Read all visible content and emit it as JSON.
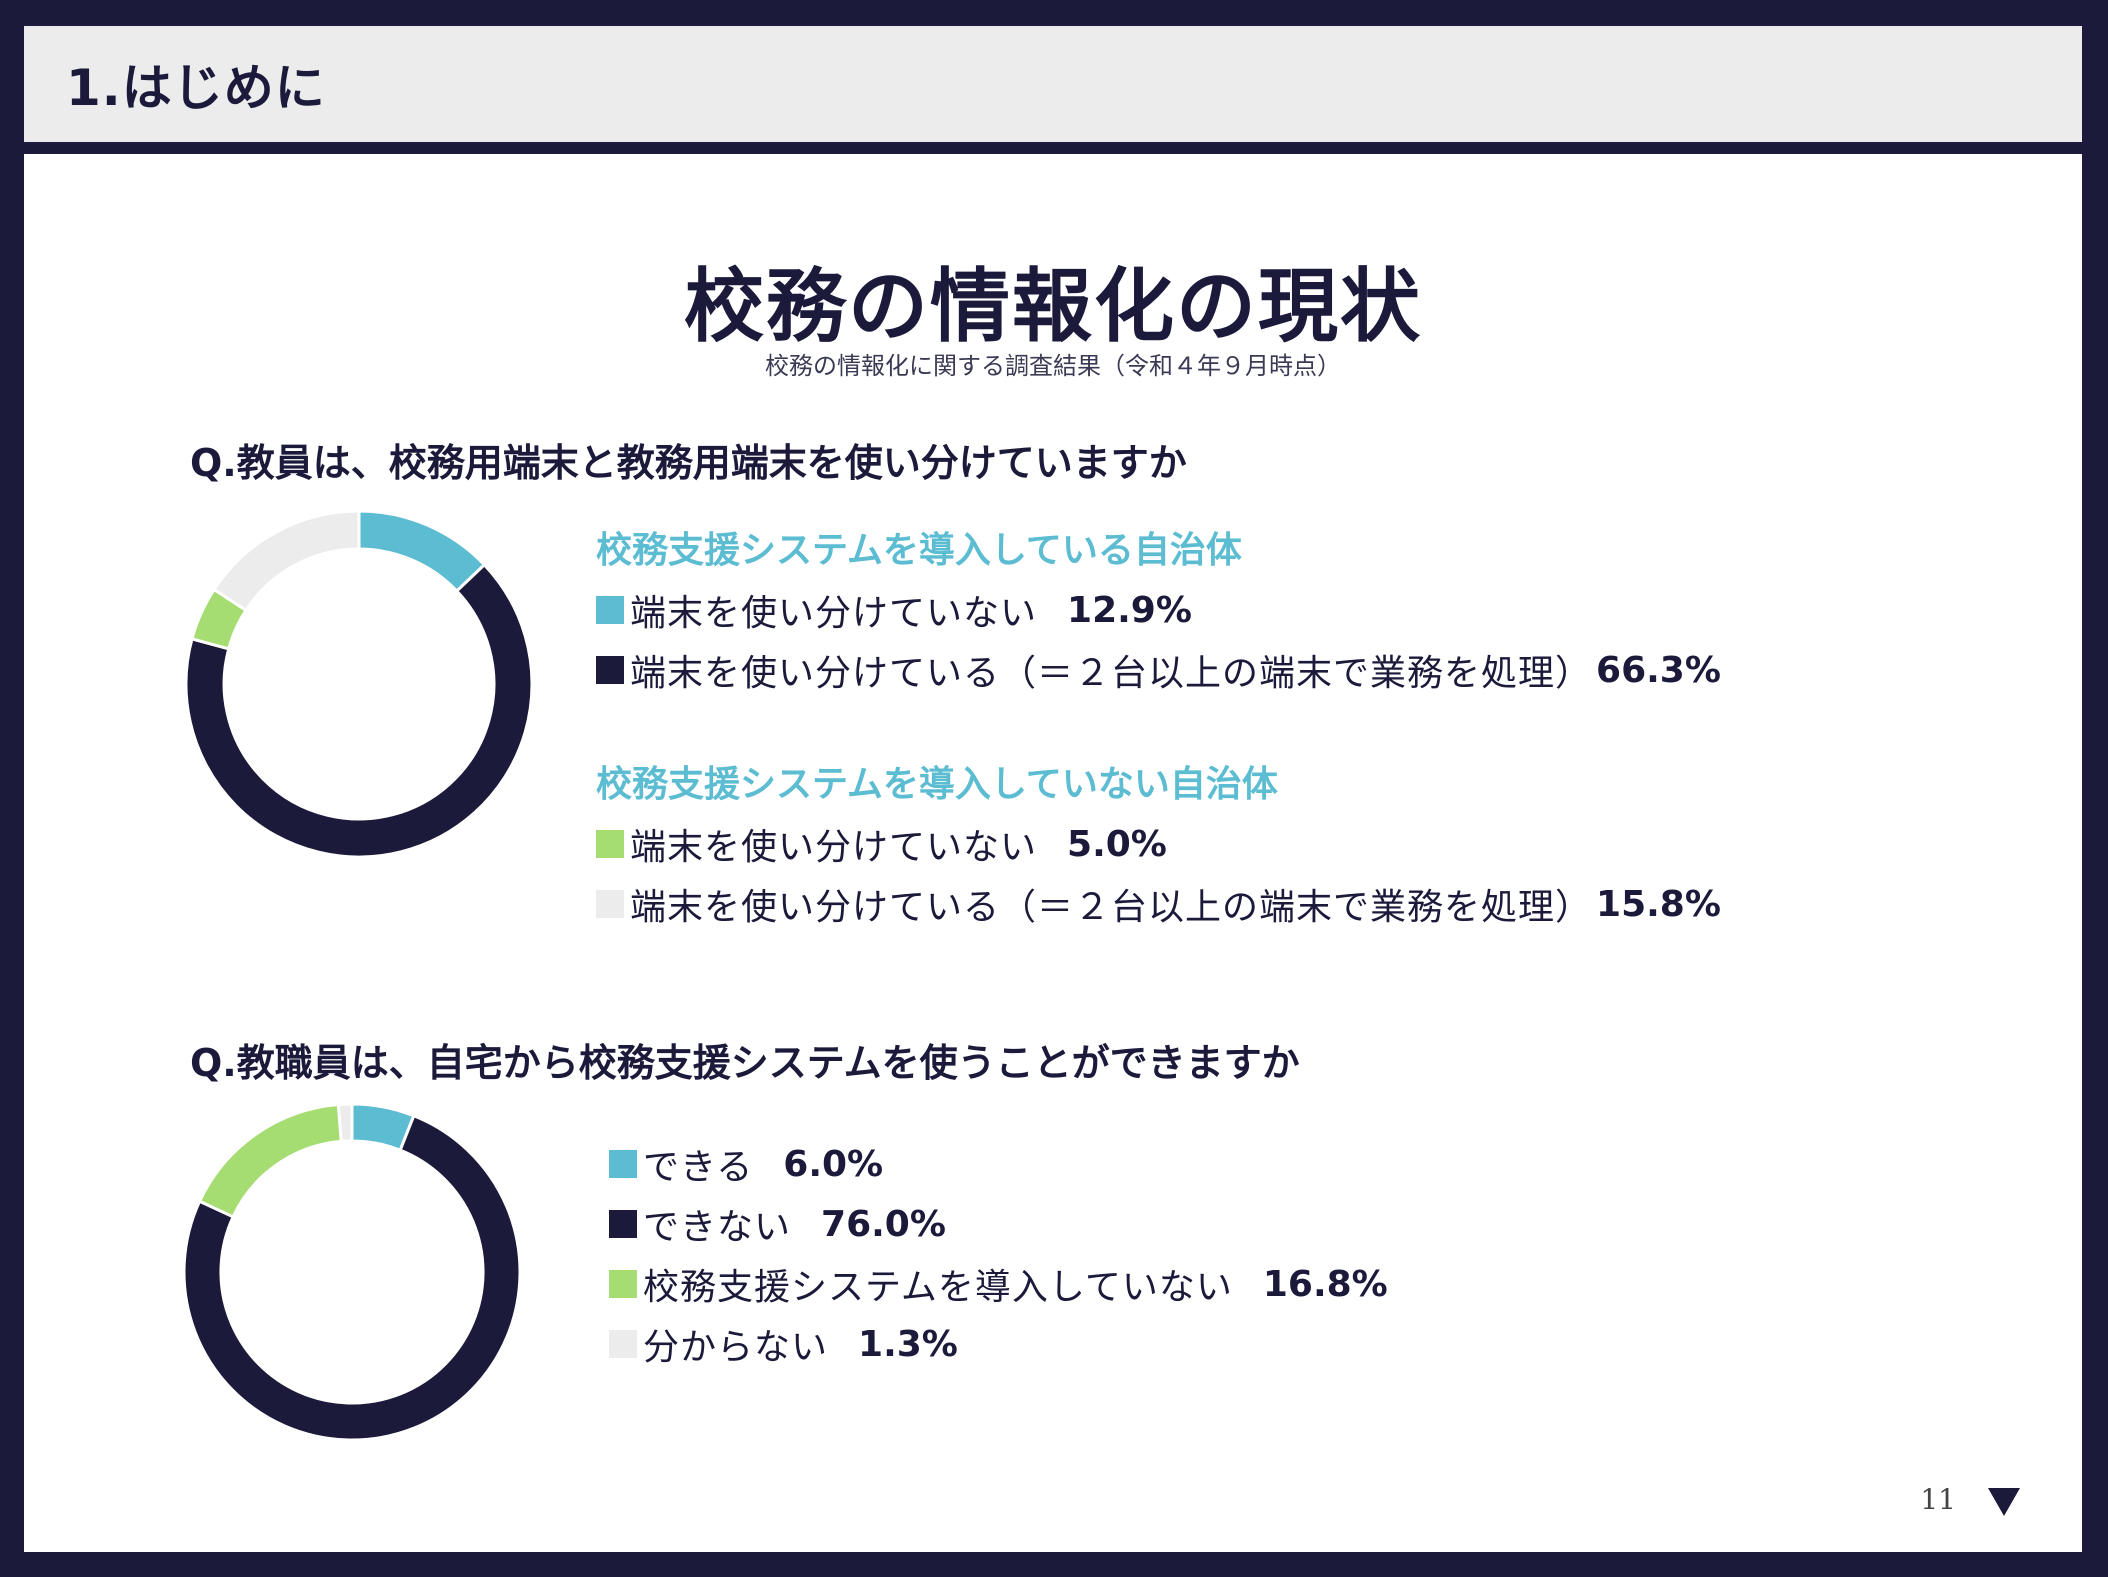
{
  "header": {
    "title": "1.はじめに"
  },
  "slide": {
    "title": "校務の情報化の現状",
    "subtitle": "校務の情報化に関する調査結果（令和４年９月時点）",
    "page_number": "11",
    "next_icon": "triangle-down-icon"
  },
  "colors": {
    "teal": "#5bbcd2",
    "navy": "#1b1a3b",
    "green": "#a6dd72",
    "lightgray": "#ececec"
  },
  "questions": [
    {
      "text": "Q.教員は、校務用端末と教務用端末を使い分けていますか",
      "groups": [
        {
          "title": "校務支援システムを導入している自治体",
          "rows": [
            {
              "label": "端末を使い分けていない",
              "value": "12.9%"
            },
            {
              "label": "端末を使い分けている（＝２台以上の端末で業務を処理）",
              "value": "66.3%"
            }
          ]
        },
        {
          "title": "校務支援システムを導入していない自治体",
          "rows": [
            {
              "label": "端末を使い分けていない",
              "value": "5.0%"
            },
            {
              "label": "端末を使い分けている（＝２台以上の端末で業務を処理）",
              "value": "15.8%"
            }
          ]
        }
      ]
    },
    {
      "text": "Q.教職員は、自宅から校務支援システムを使うことができますか",
      "rows": [
        {
          "label": "できる",
          "value": "6.0%"
        },
        {
          "label": "できない",
          "value": "76.0%"
        },
        {
          "label": "校務支援システムを導入していない",
          "value": "16.8%"
        },
        {
          "label": "分からない",
          "value": "1.3%"
        }
      ]
    }
  ],
  "chart_data": [
    {
      "type": "pie",
      "categories": [
        "校務支援システムを導入している自治体 端末を使い分けていない",
        "校務支援システムを導入している自治体 端末を使い分けている（＝２台以上の端末で業務を処理）",
        "校務支援システムを導入していない自治体 端末を使い分けていない",
        "校務支援システムを導入していない自治体 端末を使い分けている（＝２台以上の端末で業務を処理）"
      ],
      "values": [
        12.9,
        66.3,
        5.0,
        15.8
      ],
      "colors": [
        "#5bbcd2",
        "#1b1a3b",
        "#a6dd72",
        "#ececec"
      ],
      "style": "donut",
      "title": "",
      "legend": "right"
    },
    {
      "type": "pie",
      "categories": [
        "できる",
        "できない",
        "校務支援システムを導入していない",
        "分からない"
      ],
      "values": [
        6.0,
        76.0,
        16.8,
        1.3
      ],
      "colors": [
        "#5bbcd2",
        "#1b1a3b",
        "#a6dd72",
        "#ececec"
      ],
      "style": "donut",
      "title": "",
      "legend": "right"
    }
  ]
}
